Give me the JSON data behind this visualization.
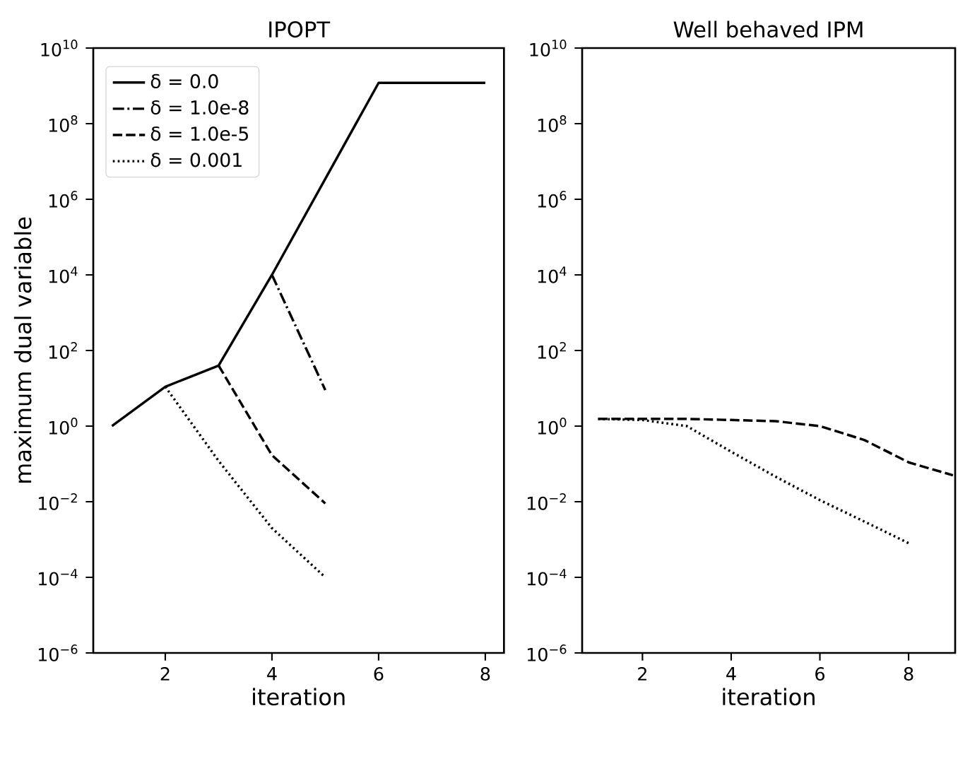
{
  "chart_data": [
    {
      "type": "line",
      "title": "IPOPT",
      "xlabel": "iteration",
      "ylabel": "maximum dual variable",
      "log": "y",
      "legend": "top left",
      "grid": false,
      "xlim": [
        0.65,
        8.35
      ],
      "xticks": [
        2,
        4,
        6,
        8
      ],
      "ylim": [
        1e-06,
        10000000000.0
      ],
      "yticks": [
        {
          "value": 1e-06,
          "label": "10$^{−6}$"
        },
        {
          "value": 0.0001,
          "label": "10$^{−4}$"
        },
        {
          "value": 0.01,
          "label": "10$^{−2}$"
        },
        {
          "value": 1,
          "label": "10$^{0}$"
        },
        {
          "value": 100,
          "label": "10$^{2}$"
        },
        {
          "value": 10000.0,
          "label": "10$^{4}$"
        },
        {
          "value": 1000000.0,
          "label": "10$^{6}$"
        },
        {
          "value": 100000000.0,
          "label": "10$^{8}$"
        },
        {
          "value": 10000000000.0,
          "label": "10$^{10}$"
        }
      ],
      "series": [
        {
          "name": "δ = 0.0",
          "color": "#000000",
          "line_style": "solid",
          "x": [
            1,
            2,
            3,
            4,
            6,
            8
          ],
          "values": [
            1,
            11,
            40,
            10000,
            1200000000.0,
            1200000000.0
          ]
        },
        {
          "name": "δ = 1.0e-8",
          "color": "#000000",
          "line_style": "dashdot",
          "x": [
            4,
            5
          ],
          "values": [
            10000,
            9
          ]
        },
        {
          "name": "δ = 1.0e-5",
          "color": "#000000",
          "line_style": "dashed",
          "x": [
            3,
            4,
            5
          ],
          "values": [
            40,
            0.17,
            0.009
          ]
        },
        {
          "name": "δ = 0.001",
          "color": "#000000",
          "line_style": "dotted",
          "x": [
            2,
            3,
            4,
            5
          ],
          "values": [
            11,
            0.12,
            0.002,
            0.0001
          ]
        }
      ]
    },
    {
      "type": "line",
      "title": "Well behaved IPM",
      "xlabel": "iteration",
      "log": "y",
      "grid": false,
      "xlim": [
        0.64,
        9.05
      ],
      "xticks": [
        2,
        4,
        6,
        8
      ],
      "ylim": [
        1e-06,
        10000000000.0
      ],
      "yticks": [
        {
          "value": 1e-06,
          "label": "10$^{−6}$"
        },
        {
          "value": 0.0001,
          "label": "10$^{−4}$"
        },
        {
          "value": 0.01,
          "label": "10$^{−2}$"
        },
        {
          "value": 1,
          "label": "10$^{0}$"
        },
        {
          "value": 100,
          "label": "10$^{2}$"
        },
        {
          "value": 10000.0,
          "label": "10$^{4}$"
        },
        {
          "value": 1000000.0,
          "label": "10$^{6}$"
        },
        {
          "value": 100000000.0,
          "label": "10$^{8}$"
        },
        {
          "value": 10000000000.0,
          "label": "10$^{10}$"
        }
      ],
      "series": [
        {
          "color": "#000000",
          "line_style": "dashed",
          "x": [
            1,
            2,
            3,
            4,
            5,
            6,
            7,
            8,
            9
          ],
          "values": [
            1.55,
            1.55,
            1.55,
            1.45,
            1.35,
            1.0,
            0.43,
            0.11,
            0.05
          ]
        },
        {
          "color": "#000000",
          "line_style": "dotted",
          "x": [
            1,
            2,
            3,
            4,
            5,
            6,
            7,
            8
          ],
          "values": [
            1.55,
            1.45,
            1.0,
            0.21,
            0.046,
            0.011,
            0.003,
            0.0008
          ]
        }
      ]
    }
  ]
}
